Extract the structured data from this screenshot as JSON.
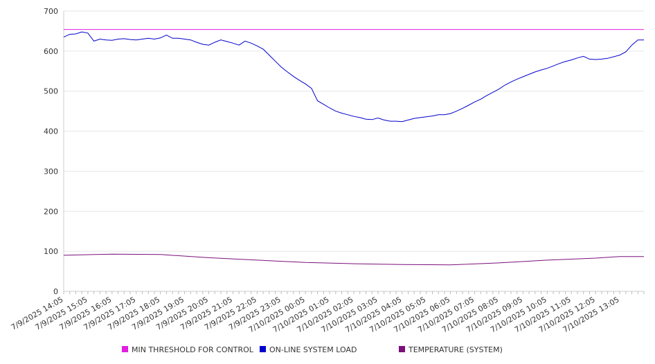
{
  "chart_data": {
    "type": "line",
    "title": "",
    "xlabel": "",
    "ylabel": "",
    "ylim": [
      0,
      700
    ],
    "y_ticks": [
      0,
      100,
      200,
      300,
      400,
      500,
      600,
      700
    ],
    "grid": "horizontal",
    "legend_position": "bottom",
    "x_tick_labels": [
      "7/9/2025 14:05",
      "7/9/2025 15:05",
      "7/9/2025 16:05",
      "7/9/2025 17:05",
      "7/9/2025 18:05",
      "7/9/2025 19:05",
      "7/9/2025 20:05",
      "7/9/2025 21:05",
      "7/9/2025 22:05",
      "7/9/2025 23:05",
      "7/10/2025 00:05",
      "7/10/2025 01:05",
      "7/10/2025 02:05",
      "7/10/2025 03:05",
      "7/10/2025 04:05",
      "7/10/2025 05:05",
      "7/10/2025 06:05",
      "7/10/2025 07:05",
      "7/10/2025 08:05",
      "7/10/2025 09:05",
      "7/10/2025 10:05",
      "7/10/2025 11:05",
      "7/10/2025 12:05",
      "7/10/2025 13:05"
    ],
    "x_range": [
      "7/9/2025 14:05",
      "7/10/2025 14:05"
    ],
    "series": [
      {
        "name": "MIN THRESHOLD FOR CONTROL",
        "color": "#e21ee2",
        "x": [
          "7/9/2025 14:05",
          "7/10/2025 14:05"
        ],
        "values": [
          654,
          654
        ]
      },
      {
        "name": "ON-LINE SYSTEM LOAD",
        "color": "#0000cc",
        "x": [
          "7/9/2025 14:05",
          "7/9/2025 14:20",
          "7/9/2025 14:35",
          "7/9/2025 14:50",
          "7/9/2025 15:05",
          "7/9/2025 15:20",
          "7/9/2025 15:35",
          "7/9/2025 15:50",
          "7/9/2025 16:05",
          "7/9/2025 16:20",
          "7/9/2025 16:35",
          "7/9/2025 16:50",
          "7/9/2025 17:05",
          "7/9/2025 17:20",
          "7/9/2025 17:35",
          "7/9/2025 17:50",
          "7/9/2025 18:05",
          "7/9/2025 18:20",
          "7/9/2025 18:35",
          "7/9/2025 18:50",
          "7/9/2025 19:05",
          "7/9/2025 19:20",
          "7/9/2025 19:35",
          "7/9/2025 19:50",
          "7/9/2025 20:05",
          "7/9/2025 20:20",
          "7/9/2025 20:35",
          "7/9/2025 20:50",
          "7/9/2025 21:05",
          "7/9/2025 21:20",
          "7/9/2025 21:35",
          "7/9/2025 21:50",
          "7/9/2025 22:05",
          "7/9/2025 22:20",
          "7/9/2025 22:35",
          "7/9/2025 22:50",
          "7/9/2025 23:05",
          "7/9/2025 23:20",
          "7/9/2025 23:35",
          "7/9/2025 23:50",
          "7/10/2025 00:05",
          "7/10/2025 00:20",
          "7/10/2025 00:35",
          "7/10/2025 00:50",
          "7/10/2025 01:05",
          "7/10/2025 01:20",
          "7/10/2025 01:35",
          "7/10/2025 01:50",
          "7/10/2025 02:05",
          "7/10/2025 02:20",
          "7/10/2025 02:35",
          "7/10/2025 02:50",
          "7/10/2025 03:05",
          "7/10/2025 03:20",
          "7/10/2025 03:35",
          "7/10/2025 03:50",
          "7/10/2025 04:05",
          "7/10/2025 04:20",
          "7/10/2025 04:35",
          "7/10/2025 04:50",
          "7/10/2025 05:05",
          "7/10/2025 05:20",
          "7/10/2025 05:35",
          "7/10/2025 05:50",
          "7/10/2025 06:05",
          "7/10/2025 06:20",
          "7/10/2025 06:35",
          "7/10/2025 06:50",
          "7/10/2025 07:05",
          "7/10/2025 07:20",
          "7/10/2025 07:35",
          "7/10/2025 07:50",
          "7/10/2025 08:05",
          "7/10/2025 08:20",
          "7/10/2025 08:35",
          "7/10/2025 08:50",
          "7/10/2025 09:05",
          "7/10/2025 09:20",
          "7/10/2025 09:35",
          "7/10/2025 09:50",
          "7/10/2025 10:05",
          "7/10/2025 10:20",
          "7/10/2025 10:35",
          "7/10/2025 10:50",
          "7/10/2025 11:05",
          "7/10/2025 11:20",
          "7/10/2025 11:35",
          "7/10/2025 11:50",
          "7/10/2025 12:05",
          "7/10/2025 12:20",
          "7/10/2025 12:35",
          "7/10/2025 12:50",
          "7/10/2025 13:05",
          "7/10/2025 13:20",
          "7/10/2025 13:35",
          "7/10/2025 13:50",
          "7/10/2025 14:05"
        ],
        "values": [
          635,
          642,
          643,
          648,
          645,
          625,
          630,
          628,
          627,
          630,
          631,
          629,
          628,
          630,
          632,
          630,
          633,
          640,
          632,
          632,
          630,
          628,
          622,
          617,
          615,
          622,
          628,
          624,
          620,
          615,
          625,
          620,
          613,
          605,
          590,
          575,
          560,
          548,
          537,
          527,
          518,
          507,
          476,
          467,
          458,
          450,
          445,
          441,
          437,
          434,
          430,
          429,
          433,
          428,
          425,
          425,
          424,
          428,
          432,
          434,
          436,
          438,
          441,
          441,
          444,
          450,
          457,
          465,
          473,
          480,
          489,
          497,
          505,
          515,
          523,
          530,
          536,
          542,
          548,
          553,
          557,
          563,
          569,
          574,
          578,
          583,
          587,
          580,
          579,
          580,
          582,
          586,
          590,
          598,
          615,
          628,
          628
        ]
      },
      {
        "name": "TEMPERATURE (SYSTEM)",
        "color": "#7b0f7b",
        "x": [
          "7/9/2025 14:05",
          "7/9/2025 16:05",
          "7/9/2025 18:05",
          "7/9/2025 20:05",
          "7/9/2025 22:05",
          "7/10/2025 00:05",
          "7/10/2025 02:05",
          "7/10/2025 04:05",
          "7/10/2025 06:05",
          "7/10/2025 08:05",
          "7/10/2025 10:05",
          "7/10/2025 12:05",
          "7/10/2025 13:05",
          "7/10/2025 14:05"
        ],
        "values": [
          90,
          93,
          92,
          84,
          78,
          72,
          69,
          67,
          66,
          71,
          78,
          83,
          87,
          87
        ]
      }
    ]
  }
}
